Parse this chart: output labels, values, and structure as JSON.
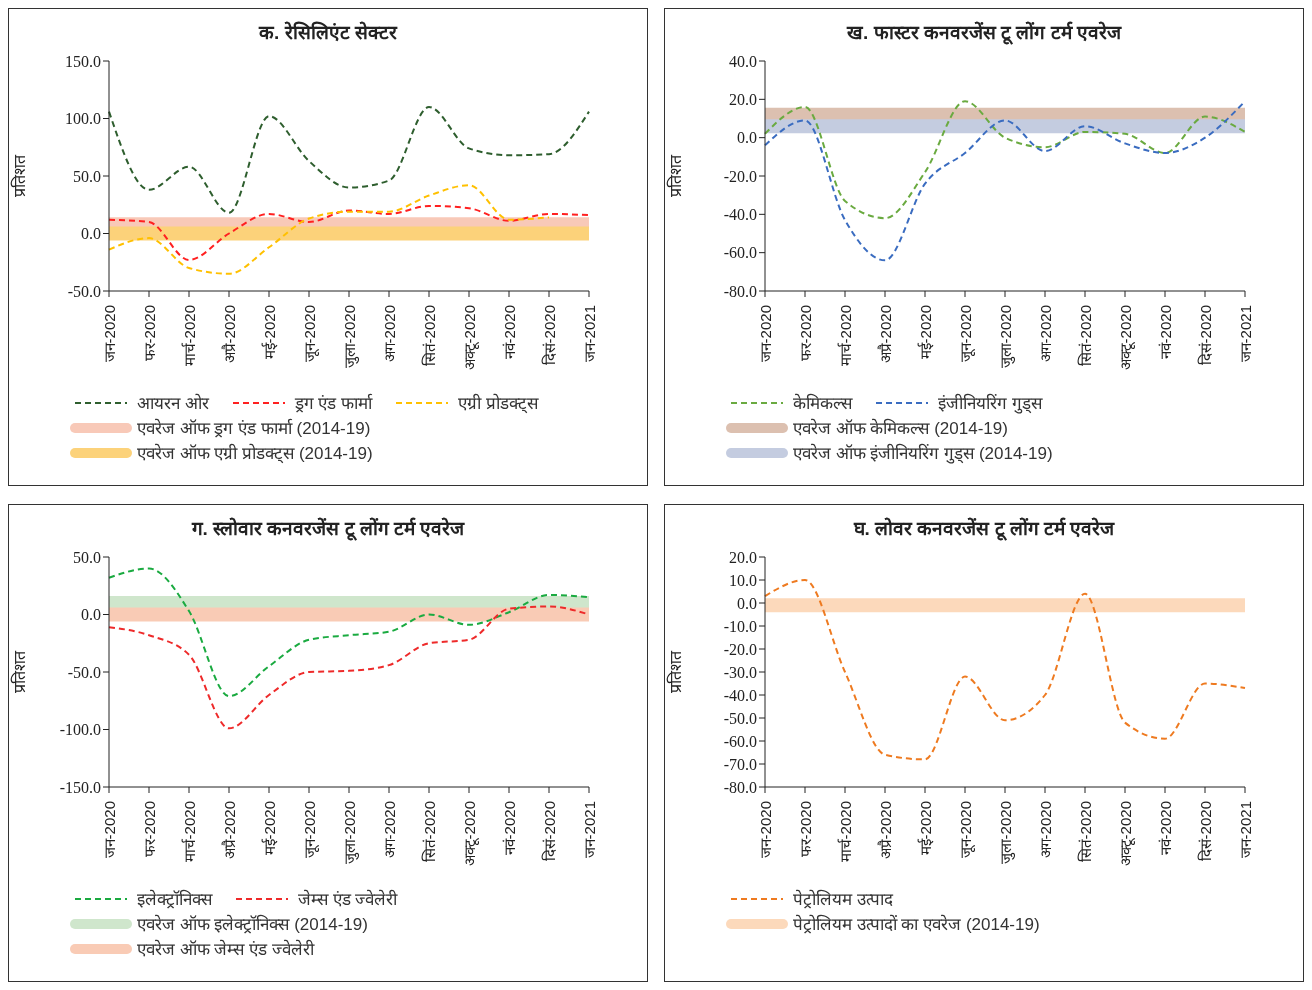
{
  "chart_data": [
    {
      "type": "line",
      "title": "क. रेसिलिएंट सेक्टर",
      "ylabel": "प्रतिशत",
      "categories": [
        "जन-2020",
        "फर-2020",
        "मार्च-2020",
        "अप्रै-2020",
        "मई-2020",
        "जून-2020",
        "जुला-2020",
        "अग-2020",
        "सितं-2020",
        "अक्टू-2020",
        "नवं-2020",
        "दिसं-2020",
        "जन-2021"
      ],
      "ylim": [
        -50,
        150
      ],
      "yticks": [
        {
          "value": -50,
          "label": "-50.0"
        },
        {
          "value": 0,
          "label": "0.0"
        },
        {
          "value": 50,
          "label": "50.0"
        },
        {
          "value": 100,
          "label": "100.0"
        },
        {
          "value": 150,
          "label": "150.0"
        }
      ],
      "line_style": "dashed",
      "legend": "bottom",
      "series": [
        {
          "name": "आयरन ओर",
          "color": "#2e5e2e",
          "values": [
            106,
            38,
            58,
            18,
            102,
            63,
            40,
            46,
            110,
            74,
            68,
            69,
            106
          ]
        },
        {
          "name": "ड्रग एंड फार्मा",
          "color": "#ff2020",
          "values": [
            12,
            10,
            -23,
            0,
            17,
            10,
            20,
            17,
            24,
            22,
            11,
            17,
            16
          ]
        },
        {
          "name": "एग्री प्रोडक्ट्स",
          "color": "#ffc000",
          "values": [
            -14,
            -4,
            -30,
            -35,
            -12,
            13,
            19,
            19,
            33,
            42,
            12,
            14,
            null
          ]
        }
      ],
      "ref_lines": [
        {
          "axis": "y",
          "value": 8,
          "label": "एवरेज ऑफ ड्रग एंड फार्मा (2014-19)",
          "color": "#f8c9b8"
        },
        {
          "axis": "y",
          "value": 0,
          "label": "एवरेज ऑफ एग्री प्रोडक्ट्स (2014-19)",
          "color": "#fcd27a"
        }
      ]
    },
    {
      "type": "line",
      "title": "ख. फास्टर कनवरजेंस टू लोंग टर्म एवरेज",
      "ylabel": "प्रतिशत",
      "categories": [
        "जन-2020",
        "फर-2020",
        "मार्च-2020",
        "अप्रै-2020",
        "मई-2020",
        "जून-2020",
        "जुला-2020",
        "अग-2020",
        "सितं-2020",
        "अक्टू-2020",
        "नवं-2020",
        "दिसं-2020",
        "जन-2021"
      ],
      "ylim": [
        -80,
        40
      ],
      "yticks": [
        {
          "value": -80,
          "label": "-80.0"
        },
        {
          "value": -60,
          "label": "-60.0"
        },
        {
          "value": -40,
          "label": "-40.0"
        },
        {
          "value": -20,
          "label": "-20.0"
        },
        {
          "value": 0,
          "label": "0.0"
        },
        {
          "value": 20,
          "label": "20.0"
        },
        {
          "value": 40,
          "label": "40.0"
        }
      ],
      "line_style": "dashed",
      "legend": "bottom",
      "series": [
        {
          "name": "केमिकल्स",
          "color": "#6aaa40",
          "values": [
            2,
            16,
            -33,
            -42,
            -18,
            19,
            0,
            -5,
            3,
            2,
            -8,
            11,
            3
          ]
        },
        {
          "name": "इंजीनियरिंग गुड्स",
          "color": "#3a6cc0",
          "values": [
            -4,
            9,
            -43,
            -64,
            -24,
            -8,
            9,
            -7,
            6,
            -3,
            -8,
            0,
            19
          ]
        }
      ],
      "ref_lines": [
        {
          "axis": "y",
          "value": 12,
          "label": "एवरेज ऑफ केमिकल्स (2014-19)",
          "color": "#dcc0b0"
        },
        {
          "axis": "y",
          "value": 6,
          "label": "एवरेज ऑफ इंजीनियरिंग गुड्स (2014-19)",
          "color": "#c4cce0"
        }
      ]
    },
    {
      "type": "line",
      "title": "ग. स्लोवार कनवरजेंस टू लोंग टर्म एवरेज",
      "ylabel": "प्रतिशत",
      "categories": [
        "जन-2020",
        "फर-2020",
        "मार्च-2020",
        "अप्रै-2020",
        "मई-2020",
        "जून-2020",
        "जुला-2020",
        "अग-2020",
        "सितं-2020",
        "अक्टू-2020",
        "नवं-2020",
        "दिसं-2020",
        "जन-2021"
      ],
      "ylim": [
        -150,
        50
      ],
      "yticks": [
        {
          "value": -150,
          "label": "-150.0"
        },
        {
          "value": -100,
          "label": "-100.0"
        },
        {
          "value": -50,
          "label": "-50.0"
        },
        {
          "value": 0,
          "label": "0.0"
        },
        {
          "value": 50,
          "label": "50.0"
        }
      ],
      "line_style": "dashed",
      "legend": "bottom",
      "series": [
        {
          "name": "इलेक्ट्रॉनिक्स",
          "color": "#1aaa40",
          "values": [
            32,
            40,
            3,
            -71,
            -45,
            -22,
            -18,
            -15,
            0,
            -9,
            2,
            17,
            15
          ]
        },
        {
          "name": "जेम्स एंड ज्वेलेरी",
          "color": "#ee2a2a",
          "values": [
            -11,
            -18,
            -35,
            -99,
            -70,
            -50,
            -49,
            -44,
            -25,
            -22,
            5,
            7,
            0
          ]
        }
      ],
      "ref_lines": [
        {
          "axis": "y",
          "value": 10,
          "label": "एवरेज ऑफ इलेक्ट्रॉनिक्स (2014-19)",
          "color": "#cfe6cc"
        },
        {
          "axis": "y",
          "value": 0,
          "label": "एवरेज ऑफ जेम्स एंड ज्वेलेरी",
          "color": "#f9cbb5"
        }
      ]
    },
    {
      "type": "line",
      "title": "घ. लोवर कनवरजेंस टू लोंग टर्म एवरेज",
      "ylabel": "प्रतिशत",
      "categories": [
        "जन-2020",
        "फर-2020",
        "मार्च-2020",
        "अप्रै-2020",
        "मई-2020",
        "जून-2020",
        "जुला-2020",
        "अग-2020",
        "सितं-2020",
        "अक्टू-2020",
        "नवं-2020",
        "दिसं-2020",
        "जन-2021"
      ],
      "ylim": [
        -80,
        20
      ],
      "yticks": [
        {
          "value": -80,
          "label": "-80.0"
        },
        {
          "value": -70,
          "label": "-70.0"
        },
        {
          "value": -60,
          "label": "-60.0"
        },
        {
          "value": -50,
          "label": "-50.0"
        },
        {
          "value": -40,
          "label": "-40.0"
        },
        {
          "value": -30,
          "label": "-30.0"
        },
        {
          "value": -20,
          "label": "-20.0"
        },
        {
          "value": -10,
          "label": "-10.0"
        },
        {
          "value": 0,
          "label": "0.0"
        },
        {
          "value": 10,
          "label": "10.0"
        },
        {
          "value": 20,
          "label": "20.0"
        }
      ],
      "line_style": "dashed",
      "legend": "bottom",
      "series": [
        {
          "name": "पेट्रोलियम उत्पाद",
          "color": "#ee7a20",
          "values": [
            3,
            10,
            -30,
            -66,
            -68,
            -32,
            -51,
            -40,
            4,
            -52,
            -59,
            -35,
            -37
          ]
        }
      ],
      "ref_lines": [
        {
          "axis": "y",
          "value": -1,
          "label": "पेट्रोलियम उत्पादों का एवरेज (2014-19)",
          "color": "#fcd9bb"
        }
      ]
    }
  ]
}
